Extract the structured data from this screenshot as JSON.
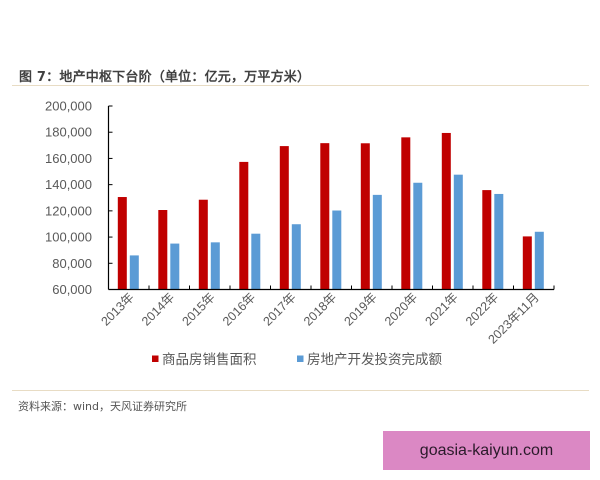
{
  "figure": {
    "title": "图 7：地产中枢下台阶（单位：亿元，万平方米）",
    "source": "资料来源：wind，天风证券研究所"
  },
  "watermark": {
    "text": "goasia-kaiyun.com",
    "color": "#db88c4"
  },
  "colors": {
    "series_sales_area": "#c00000",
    "series_investment": "#5b9bd5",
    "axis": "#000000",
    "tick_label": "#595959",
    "separator": "#e8dcc4"
  },
  "chart_data": {
    "type": "bar",
    "title": "地产中枢下台阶（单位：亿元，万平方米）",
    "xlabel": "",
    "ylabel": "",
    "ylim": [
      60000,
      200000
    ],
    "yticks": [
      60000,
      80000,
      100000,
      120000,
      140000,
      160000,
      180000,
      200000
    ],
    "ytick_labels": [
      "60,000",
      "80,000",
      "100,000",
      "120,000",
      "140,000",
      "160,000",
      "180,000",
      "200,000"
    ],
    "grid": false,
    "legend_position": "bottom",
    "categories": [
      "2013年",
      "2014年",
      "2015年",
      "2016年",
      "2017年",
      "2018年",
      "2019年",
      "2020年",
      "2021年",
      "2022年",
      "2023年11月"
    ],
    "series": [
      {
        "name": "商品房销售面积",
        "color": "#c00000",
        "values": [
          130551,
          120649,
          128495,
          157349,
          169408,
          171654,
          171558,
          176086,
          179433,
          135837,
          100509
        ]
      },
      {
        "name": "房地产开发投资完成额",
        "color": "#5b9bd5",
        "values": [
          86013,
          95036,
          95979,
          102581,
          109799,
          120264,
          132194,
          141443,
          147602,
          132895,
          104045
        ]
      }
    ]
  }
}
